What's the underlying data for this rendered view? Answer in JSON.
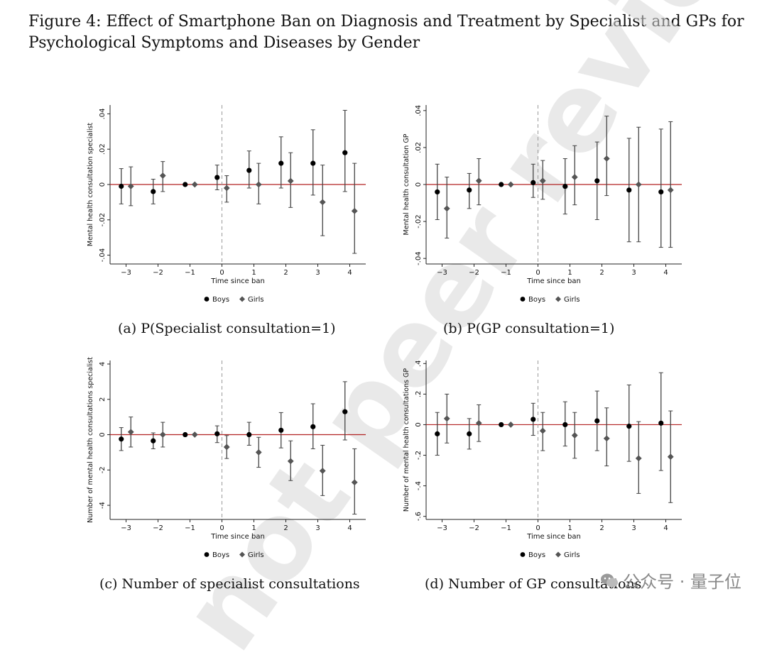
{
  "figure_title": "Figure 4: Effect of Smartphone Ban on Diagnosis and Treatment by Specialist and GPs for Psychological Symptoms and Diseases by Gender",
  "watermark_text": "not peer review",
  "wechat_badge": "公众号 · 量子位",
  "colors": {
    "zero_line": "#b22222",
    "ref_line": "#999999",
    "boys": "#000000",
    "girls": "#555555",
    "whisker": "#444444"
  },
  "chart_data": [
    {
      "type": "scatter",
      "caption": "(a) P(Specialist consultation=1)",
      "xlabel": "Time since ban",
      "ylabel": "Mental health consultation specialist",
      "xticks": [
        -3,
        -2,
        -1,
        0,
        1,
        2,
        3,
        4
      ],
      "yticks": [
        -0.04,
        -0.02,
        0,
        0.02,
        0.04
      ],
      "ytick_labels": [
        "-.04",
        "-.02",
        "0",
        ".02",
        ".04"
      ],
      "xlim": [
        -3.5,
        4.5
      ],
      "ylim": [
        -0.045,
        0.045
      ],
      "legend": [
        "Boys",
        "Girls"
      ],
      "series": [
        {
          "name": "Boys",
          "marker": "circle",
          "x": [
            -3,
            -2,
            -1,
            0,
            1,
            2,
            3,
            4
          ],
          "y": [
            -0.001,
            -0.004,
            0,
            0.004,
            0.008,
            0.012,
            0.012,
            0.018
          ],
          "lo": [
            -0.011,
            -0.011,
            0,
            -0.003,
            -0.002,
            -0.002,
            -0.006,
            -0.004
          ],
          "hi": [
            0.009,
            0.003,
            0,
            0.011,
            0.019,
            0.027,
            0.031,
            0.042
          ]
        },
        {
          "name": "Girls",
          "marker": "diamond",
          "x": [
            -3,
            -2,
            -1,
            0,
            1,
            2,
            3,
            4
          ],
          "y": [
            -0.001,
            0.005,
            0,
            -0.002,
            0,
            0.002,
            -0.01,
            -0.015
          ],
          "lo": [
            -0.012,
            -0.004,
            0,
            -0.01,
            -0.011,
            -0.013,
            -0.029,
            -0.039
          ],
          "hi": [
            0.01,
            0.013,
            0,
            0.005,
            0.012,
            0.018,
            0.011,
            0.012
          ]
        }
      ]
    },
    {
      "type": "scatter",
      "caption": "(b) P(GP consultation=1)",
      "xlabel": "Time since ban",
      "ylabel": "Mental health consultation GP",
      "xticks": [
        -3,
        -2,
        -1,
        0,
        1,
        2,
        3,
        4
      ],
      "yticks": [
        -0.04,
        -0.02,
        0,
        0.02,
        0.04
      ],
      "ytick_labels": [
        "-.04",
        "-.02",
        "0",
        ".02",
        ".04"
      ],
      "xlim": [
        -3.5,
        4.5
      ],
      "ylim": [
        -0.043,
        0.043
      ],
      "legend": [
        "Boys",
        "Girls"
      ],
      "series": [
        {
          "name": "Boys",
          "marker": "circle",
          "x": [
            -3,
            -2,
            -1,
            0,
            1,
            2,
            3,
            4
          ],
          "y": [
            -0.004,
            -0.003,
            0,
            0.001,
            -0.001,
            0.002,
            -0.003,
            -0.004
          ],
          "lo": [
            -0.019,
            -0.013,
            0,
            -0.007,
            -0.016,
            -0.019,
            -0.031,
            -0.034
          ],
          "hi": [
            0.011,
            0.006,
            0,
            0.011,
            0.014,
            0.023,
            0.025,
            0.03
          ]
        },
        {
          "name": "Girls",
          "marker": "diamond",
          "x": [
            -3,
            -2,
            -1,
            0,
            1,
            2,
            3,
            4
          ],
          "y": [
            -0.013,
            0.002,
            0,
            0.002,
            0.004,
            0.014,
            0,
            -0.003
          ],
          "lo": [
            -0.029,
            -0.011,
            0,
            -0.008,
            -0.011,
            -0.006,
            -0.031,
            -0.034
          ],
          "hi": [
            0.004,
            0.014,
            0,
            0.013,
            0.021,
            0.037,
            0.031,
            0.034
          ]
        }
      ]
    },
    {
      "type": "scatter",
      "caption": "(c) Number of specialist consultations",
      "xlabel": "Time since ban",
      "ylabel": "Number of mental health consultations specialist",
      "xticks": [
        -3,
        -2,
        -1,
        0,
        1,
        2,
        3,
        4
      ],
      "yticks": [
        -4,
        -2,
        0,
        2,
        4
      ],
      "ytick_labels": [
        "-4",
        "-2",
        "0",
        "2",
        "4"
      ],
      "xlim": [
        -3.5,
        4.5
      ],
      "ylim": [
        -4.8,
        4.2
      ],
      "legend": [
        "Boys",
        "Girls"
      ],
      "series": [
        {
          "name": "Boys",
          "marker": "circle",
          "x": [
            -3,
            -2,
            -1,
            0,
            1,
            2,
            3,
            4
          ],
          "y": [
            -0.25,
            -0.35,
            0,
            0.05,
            0,
            0.25,
            0.45,
            1.3
          ],
          "lo": [
            -0.9,
            -0.8,
            0,
            -0.45,
            -0.6,
            -0.75,
            -0.8,
            -0.3
          ],
          "hi": [
            0.4,
            0.1,
            0,
            0.5,
            0.7,
            1.25,
            1.75,
            3.0
          ]
        },
        {
          "name": "Girls",
          "marker": "diamond",
          "x": [
            -3,
            -2,
            -1,
            0,
            1,
            2,
            3,
            4
          ],
          "y": [
            0.15,
            0,
            0,
            -0.7,
            -1.0,
            -1.5,
            -2.05,
            -2.7
          ],
          "lo": [
            -0.7,
            -0.7,
            0,
            -1.35,
            -1.85,
            -2.6,
            -3.45,
            -4.5
          ],
          "hi": [
            1.0,
            0.7,
            0,
            -0.05,
            -0.15,
            -0.35,
            -0.6,
            -0.8
          ]
        }
      ]
    },
    {
      "type": "scatter",
      "caption": "(d) Number of GP consultations",
      "xlabel": "Time since ban",
      "ylabel": "Number of mental health consultations GP",
      "xticks": [
        -3,
        -2,
        -1,
        0,
        1,
        2,
        3,
        4
      ],
      "yticks": [
        -0.6,
        -0.4,
        -0.2,
        0,
        0.2,
        0.4
      ],
      "ytick_labels": [
        "-.6",
        "-.4",
        "-.2",
        "0",
        ".2",
        ".4"
      ],
      "xlim": [
        -3.5,
        4.5
      ],
      "ylim": [
        -0.62,
        0.42
      ],
      "legend": [
        "Boys",
        "Girls"
      ],
      "series": [
        {
          "name": "Boys",
          "marker": "circle",
          "x": [
            -3,
            -2,
            -1,
            0,
            1,
            2,
            3,
            4
          ],
          "y": [
            -0.06,
            -0.06,
            0,
            0.035,
            0,
            0.025,
            -0.01,
            0.01
          ],
          "lo": [
            -0.2,
            -0.16,
            0,
            -0.07,
            -0.14,
            -0.17,
            -0.24,
            -0.3
          ],
          "hi": [
            0.08,
            0.04,
            0,
            0.14,
            0.15,
            0.22,
            0.26,
            0.34
          ]
        },
        {
          "name": "Girls",
          "marker": "diamond",
          "x": [
            -3,
            -2,
            -1,
            0,
            1,
            2,
            3,
            4
          ],
          "y": [
            0.04,
            0.01,
            0,
            -0.04,
            -0.07,
            -0.09,
            -0.22,
            -0.21
          ],
          "lo": [
            -0.12,
            -0.11,
            0,
            -0.17,
            -0.22,
            -0.27,
            -0.45,
            -0.51
          ],
          "hi": [
            0.2,
            0.13,
            0,
            0.08,
            0.08,
            0.11,
            0.02,
            0.09
          ]
        }
      ]
    }
  ]
}
